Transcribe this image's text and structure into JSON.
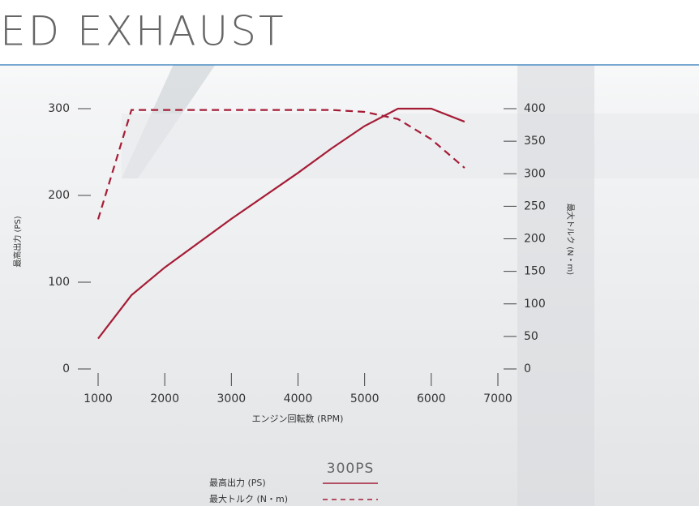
{
  "page_title": "ED EXHAUST",
  "chart_data": {
    "type": "line",
    "x_label": "エンジン回転数 (RPM)",
    "y_label": "最高出力 (PS)",
    "y2_label": "最大トルク (N・m)",
    "x": [
      1000,
      1500,
      2000,
      3000,
      4000,
      4500,
      5000,
      5500,
      6000,
      6500
    ],
    "xlim": [
      1000,
      7000
    ],
    "xticks": [
      1000,
      2000,
      3000,
      4000,
      5000,
      6000,
      7000
    ],
    "ylim": [
      0,
      300
    ],
    "yticks": [
      0,
      100,
      200,
      300
    ],
    "y2lim": [
      0,
      400
    ],
    "y2ticks": [
      0,
      50,
      100,
      150,
      200,
      250,
      300,
      350,
      400
    ],
    "legend_title": "300PS",
    "series": [
      {
        "name": "最高出力 (PS)",
        "color": "#a51c36",
        "dashed": false,
        "values": [
          35,
          85,
          117,
          173,
          226,
          254,
          280,
          300,
          300,
          285
        ]
      },
      {
        "name": "最大トルク (N・m)",
        "color": "#a51c36",
        "dashed": true,
        "axis": "y2",
        "values": [
          230,
          398,
          398,
          398,
          398,
          398,
          395,
          384,
          353,
          309
        ]
      }
    ]
  }
}
